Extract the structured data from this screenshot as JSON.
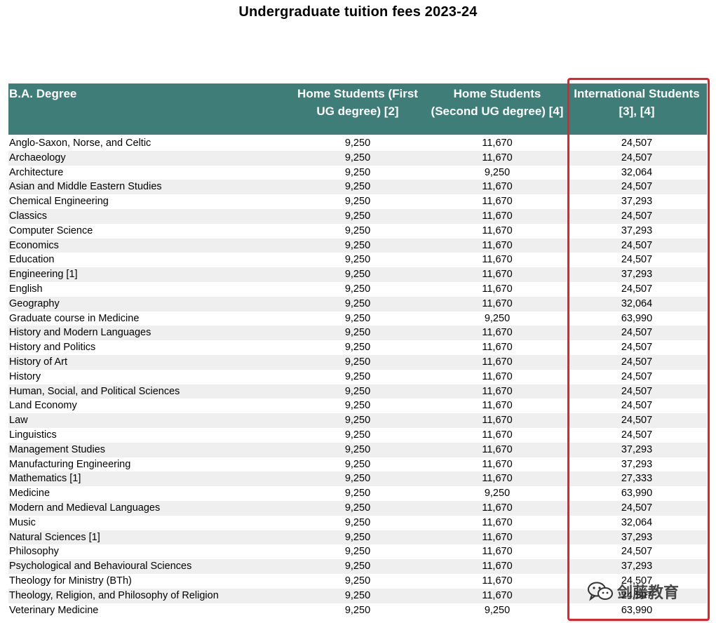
{
  "title": "Undergraduate tuition fees 2023-24",
  "table": {
    "headers": {
      "degree": "B.A. Degree",
      "home_first": "Home Students (First UG degree) [2]",
      "home_second": "Home Students (Second UG degree) [4]",
      "international": "International Students [3], [4]"
    },
    "rows": [
      {
        "degree": "Anglo-Saxon, Norse, and Celtic",
        "home_first": "9,250",
        "home_second": "11,670",
        "international": "24,507"
      },
      {
        "degree": "Archaeology",
        "home_first": "9,250",
        "home_second": "11,670",
        "international": "24,507"
      },
      {
        "degree": "Architecture",
        "home_first": "9,250",
        "home_second": "9,250",
        "international": "32,064"
      },
      {
        "degree": "Asian and Middle Eastern Studies",
        "home_first": "9,250",
        "home_second": "11,670",
        "international": "24,507"
      },
      {
        "degree": "Chemical Engineering",
        "home_first": "9,250",
        "home_second": "11,670",
        "international": "37,293"
      },
      {
        "degree": "Classics",
        "home_first": "9,250",
        "home_second": "11,670",
        "international": "24,507"
      },
      {
        "degree": "Computer Science",
        "home_first": "9,250",
        "home_second": "11,670",
        "international": "37,293"
      },
      {
        "degree": "Economics",
        "home_first": "9,250",
        "home_second": "11,670",
        "international": "24,507"
      },
      {
        "degree": "Education",
        "home_first": "9,250",
        "home_second": "11,670",
        "international": "24,507"
      },
      {
        "degree": "Engineering [1]",
        "home_first": "9,250",
        "home_second": "11,670",
        "international": "37,293"
      },
      {
        "degree": "English",
        "home_first": "9,250",
        "home_second": "11,670",
        "international": "24,507"
      },
      {
        "degree": "Geography",
        "home_first": "9,250",
        "home_second": "11,670",
        "international": "32,064"
      },
      {
        "degree": "Graduate course in Medicine",
        "home_first": "9,250",
        "home_second": "9,250",
        "international": "63,990"
      },
      {
        "degree": "History and Modern Languages",
        "home_first": "9,250",
        "home_second": "11,670",
        "international": "24,507"
      },
      {
        "degree": "History and Politics",
        "home_first": "9,250",
        "home_second": "11,670",
        "international": "24,507"
      },
      {
        "degree": "History of Art",
        "home_first": "9,250",
        "home_second": "11,670",
        "international": "24,507"
      },
      {
        "degree": "History",
        "home_first": "9,250",
        "home_second": "11,670",
        "international": "24,507"
      },
      {
        "degree": "Human, Social, and Political Sciences",
        "home_first": "9,250",
        "home_second": "11,670",
        "international": "24,507"
      },
      {
        "degree": "Land Economy",
        "home_first": "9,250",
        "home_second": "11,670",
        "international": "24,507"
      },
      {
        "degree": "Law",
        "home_first": "9,250",
        "home_second": "11,670",
        "international": "24,507"
      },
      {
        "degree": "Linguistics",
        "home_first": "9,250",
        "home_second": "11,670",
        "international": "24,507"
      },
      {
        "degree": "Management Studies",
        "home_first": "9,250",
        "home_second": "11,670",
        "international": "37,293"
      },
      {
        "degree": "Manufacturing Engineering",
        "home_first": "9,250",
        "home_second": "11,670",
        "international": "37,293"
      },
      {
        "degree": "Mathematics [1]",
        "home_first": "9,250",
        "home_second": "11,670",
        "international": "27,333"
      },
      {
        "degree": "Medicine",
        "home_first": "9,250",
        "home_second": "9,250",
        "international": "63,990"
      },
      {
        "degree": "Modern and Medieval Languages",
        "home_first": "9,250",
        "home_second": "11,670",
        "international": "24,507"
      },
      {
        "degree": "Music",
        "home_first": "9,250",
        "home_second": "11,670",
        "international": "32,064"
      },
      {
        "degree": "Natural Sciences [1]",
        "home_first": "9,250",
        "home_second": "11,670",
        "international": "37,293"
      },
      {
        "degree": "Philosophy",
        "home_first": "9,250",
        "home_second": "11,670",
        "international": "24,507"
      },
      {
        "degree": "Psychological and Behavioural Sciences",
        "home_first": "9,250",
        "home_second": "11,670",
        "international": "37,293"
      },
      {
        "degree": "Theology for Ministry (BTh)",
        "home_first": "9,250",
        "home_second": "11,670",
        "international": "24,507"
      },
      {
        "degree": "Theology, Religion, and Philosophy of Religion",
        "home_first": "9,250",
        "home_second": "11,670",
        "international": "24,507"
      },
      {
        "degree": "Veterinary Medicine",
        "home_first": "9,250",
        "home_second": "9,250",
        "international": "63,990"
      }
    ]
  },
  "watermark": {
    "text": "剑藤教育",
    "icon": "wechat-icon"
  },
  "colors": {
    "header_bg": "#3f7e78",
    "highlight_border": "#e8202a",
    "stripe": "#efefef"
  }
}
